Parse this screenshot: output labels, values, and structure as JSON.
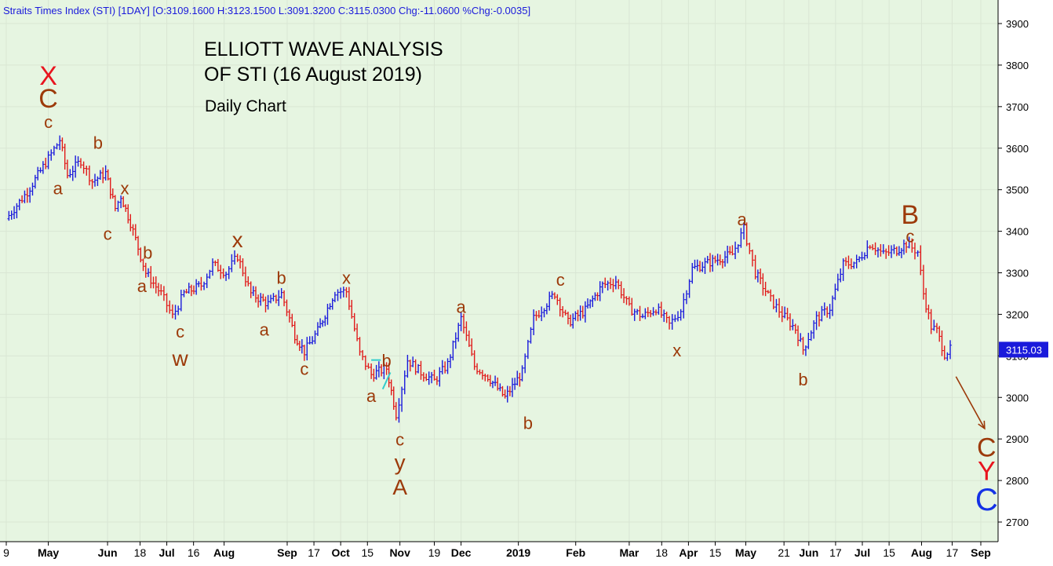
{
  "header": {
    "text": "Straits Times Index (STI) [1DAY] [O:3109.1600 H:3123.1500 L:3091.3200 C:3115.0300 Chg:-11.0600 %Chg:-0.0035]"
  },
  "title": {
    "line1": "ELLIOTT WAVE ANALYSIS",
    "line2": "OF STI (16 August 2019)",
    "subtitle": "Daily Chart"
  },
  "colors": {
    "background": "#e6f5e1",
    "up_bar": "#1a1adb",
    "down_bar": "#e01a1a",
    "wave_label": "#9c3a0a",
    "major_red": "#e8141e",
    "major_blue": "#1432e6",
    "price_box": "#1a1adb",
    "triangle": "#33cccc"
  },
  "chart_data": {
    "type": "ohlc",
    "ylim": [
      2660,
      3950
    ],
    "y_ticks": [
      2700,
      2800,
      2900,
      3000,
      3100,
      3200,
      3300,
      3400,
      3500,
      3600,
      3700,
      3800,
      3900
    ],
    "x_tick_labels": [
      "9",
      "May",
      "Jun",
      "18",
      "Jul",
      "16",
      "Aug",
      "Sep",
      "17",
      "Oct",
      "15",
      "Nov",
      "19",
      "Dec",
      "2019",
      "Feb",
      "Mar",
      "18",
      "Apr",
      "15",
      "May",
      "21",
      "Jun",
      "17",
      "Jul",
      "15",
      "Aug",
      "17",
      "Sep"
    ],
    "bold_tick_labels": [
      "May",
      "Jun",
      "Jul",
      "Aug",
      "Sep",
      "Oct",
      "Nov",
      "Dec",
      "2019",
      "Feb",
      "Mar",
      "Apr",
      "May",
      "Jun",
      "Jul",
      "Aug",
      "Sep"
    ],
    "last_price": "3115.03",
    "close_path": [
      [
        "2018-04-09",
        3430
      ],
      [
        "2018-04-20",
        3495
      ],
      [
        "2018-05-01",
        3575
      ],
      [
        "2018-05-07",
        3620
      ],
      [
        "2018-05-11",
        3535
      ],
      [
        "2018-05-18",
        3570
      ],
      [
        "2018-05-24",
        3520
      ],
      [
        "2018-05-31",
        3540
      ],
      [
        "2018-06-05",
        3455
      ],
      [
        "2018-06-08",
        3485
      ],
      [
        "2018-06-13",
        3420
      ],
      [
        "2018-06-21",
        3300
      ],
      [
        "2018-06-29",
        3250
      ],
      [
        "2018-07-05",
        3195
      ],
      [
        "2018-07-11",
        3250
      ],
      [
        "2018-07-20",
        3270
      ],
      [
        "2018-07-26",
        3320
      ],
      [
        "2018-08-02",
        3300
      ],
      [
        "2018-08-08",
        3340
      ],
      [
        "2018-08-15",
        3250
      ],
      [
        "2018-08-24",
        3225
      ],
      [
        "2018-08-31",
        3250
      ],
      [
        "2018-09-07",
        3150
      ],
      [
        "2018-09-12",
        3110
      ],
      [
        "2018-09-19",
        3160
      ],
      [
        "2018-09-28",
        3255
      ],
      [
        "2018-10-04",
        3255
      ],
      [
        "2018-10-11",
        3105
      ],
      [
        "2018-10-17",
        3055
      ],
      [
        "2018-10-25",
        3070
      ],
      [
        "2018-10-30",
        2960
      ],
      [
        "2018-11-05",
        3090
      ],
      [
        "2018-11-12",
        3060
      ],
      [
        "2018-11-19",
        3040
      ],
      [
        "2018-11-26",
        3080
      ],
      [
        "2018-12-03",
        3190
      ],
      [
        "2018-12-10",
        3075
      ],
      [
        "2018-12-17",
        3050
      ],
      [
        "2018-12-26",
        3000
      ],
      [
        "2019-01-04",
        3060
      ],
      [
        "2019-01-10",
        3190
      ],
      [
        "2019-01-21",
        3250
      ],
      [
        "2019-01-28",
        3180
      ],
      [
        "2019-02-06",
        3210
      ],
      [
        "2019-02-15",
        3270
      ],
      [
        "2019-02-22",
        3280
      ],
      [
        "2019-03-01",
        3215
      ],
      [
        "2019-03-08",
        3195
      ],
      [
        "2019-03-15",
        3215
      ],
      [
        "2019-03-22",
        3175
      ],
      [
        "2019-03-28",
        3210
      ],
      [
        "2019-04-03",
        3310
      ],
      [
        "2019-04-15",
        3330
      ],
      [
        "2019-04-24",
        3345
      ],
      [
        "2019-04-30",
        3405
      ],
      [
        "2019-05-06",
        3300
      ],
      [
        "2019-05-14",
        3235
      ],
      [
        "2019-05-20",
        3200
      ],
      [
        "2019-05-27",
        3165
      ],
      [
        "2019-05-31",
        3115
      ],
      [
        "2019-06-07",
        3190
      ],
      [
        "2019-06-14",
        3215
      ],
      [
        "2019-06-21",
        3320
      ],
      [
        "2019-06-28",
        3325
      ],
      [
        "2019-07-05",
        3370
      ],
      [
        "2019-07-12",
        3345
      ],
      [
        "2019-07-19",
        3355
      ],
      [
        "2019-07-24",
        3370
      ],
      [
        "2019-07-30",
        3350
      ],
      [
        "2019-08-02",
        3250
      ],
      [
        "2019-08-06",
        3170
      ],
      [
        "2019-08-09",
        3160
      ],
      [
        "2019-08-13",
        3105
      ],
      [
        "2019-08-16",
        3115
      ]
    ],
    "wave_labels": [
      {
        "text": "X",
        "date": "2018-05-01",
        "value": 3770,
        "color": "major_red",
        "size": "large"
      },
      {
        "text": "C",
        "date": "2018-05-01",
        "value": 3715,
        "color": "wave_label",
        "size": "large"
      },
      {
        "text": "c",
        "date": "2018-05-01",
        "value": 3660,
        "color": "wave_label",
        "size": "small"
      },
      {
        "text": "a",
        "date": "2018-05-06",
        "value": 3500,
        "color": "wave_label",
        "size": "small"
      },
      {
        "text": "b",
        "date": "2018-05-27",
        "value": 3610,
        "color": "wave_label",
        "size": "small"
      },
      {
        "text": "x",
        "date": "2018-06-10",
        "value": 3500,
        "color": "wave_label",
        "size": "small"
      },
      {
        "text": "c",
        "date": "2018-06-01",
        "value": 3390,
        "color": "wave_label",
        "size": "small"
      },
      {
        "text": "b",
        "date": "2018-06-22",
        "value": 3345,
        "color": "wave_label",
        "size": "small"
      },
      {
        "text": "a",
        "date": "2018-06-19",
        "value": 3265,
        "color": "wave_label",
        "size": "small"
      },
      {
        "text": "c",
        "date": "2018-07-09",
        "value": 3155,
        "color": "wave_label",
        "size": "small"
      },
      {
        "text": "w",
        "date": "2018-07-09",
        "value": 3090,
        "color": "wave_label",
        "size": "medium"
      },
      {
        "text": "x",
        "date": "2018-08-08",
        "value": 3375,
        "color": "wave_label",
        "size": "medium"
      },
      {
        "text": "b",
        "date": "2018-08-31",
        "value": 3285,
        "color": "wave_label",
        "size": "small"
      },
      {
        "text": "a",
        "date": "2018-08-22",
        "value": 3160,
        "color": "wave_label",
        "size": "small"
      },
      {
        "text": "c",
        "date": "2018-09-12",
        "value": 3065,
        "color": "wave_label",
        "size": "small"
      },
      {
        "text": "x",
        "date": "2018-10-04",
        "value": 3285,
        "color": "wave_label",
        "size": "small"
      },
      {
        "text": "b",
        "date": "2018-10-25",
        "value": 3085,
        "color": "wave_label",
        "size": "small"
      },
      {
        "text": "a",
        "date": "2018-10-17",
        "value": 3000,
        "color": "wave_label",
        "size": "small"
      },
      {
        "text": "c",
        "date": "2018-11-01",
        "value": 2895,
        "color": "wave_label",
        "size": "small"
      },
      {
        "text": "y",
        "date": "2018-11-01",
        "value": 2840,
        "color": "wave_label",
        "size": "medium"
      },
      {
        "text": "A",
        "date": "2018-11-01",
        "value": 2780,
        "color": "wave_label",
        "size": "medium"
      },
      {
        "text": "a",
        "date": "2018-12-03",
        "value": 3215,
        "color": "wave_label",
        "size": "small"
      },
      {
        "text": "b",
        "date": "2019-01-07",
        "value": 2935,
        "color": "wave_label",
        "size": "small"
      },
      {
        "text": "c",
        "date": "2019-01-24",
        "value": 3280,
        "color": "wave_label",
        "size": "small"
      },
      {
        "text": "x",
        "date": "2019-03-26",
        "value": 3110,
        "color": "wave_label",
        "size": "small"
      },
      {
        "text": "a",
        "date": "2019-04-29",
        "value": 3425,
        "color": "wave_label",
        "size": "small"
      },
      {
        "text": "b",
        "date": "2019-05-31",
        "value": 3040,
        "color": "wave_label",
        "size": "small"
      },
      {
        "text": "B",
        "date": "2019-07-26",
        "value": 3435,
        "color": "wave_label",
        "size": "large"
      },
      {
        "text": "c",
        "date": "2019-07-26",
        "value": 3385,
        "color": "wave_label",
        "size": "small"
      },
      {
        "text": "C",
        "date": "2019-09-04",
        "value": 2875,
        "color": "wave_label",
        "size": "large"
      },
      {
        "text": "Y",
        "date": "2019-09-04",
        "value": 2818,
        "color": "major_red",
        "size": "large"
      },
      {
        "text": "C",
        "date": "2019-09-04",
        "value": 2748,
        "color": "major_blue",
        "size": "xlarge"
      }
    ],
    "annotations": {
      "projection_arrow": {
        "from": [
          "2019-08-19",
          3050
        ],
        "to": [
          "2019-09-03",
          2925
        ]
      },
      "triangle": [
        [
          "2018-10-17",
          3090
        ],
        [
          "2018-10-22",
          3090
        ],
        [
          "2018-10-27",
          3060
        ],
        [
          "2018-10-23",
          3020
        ]
      ]
    }
  }
}
